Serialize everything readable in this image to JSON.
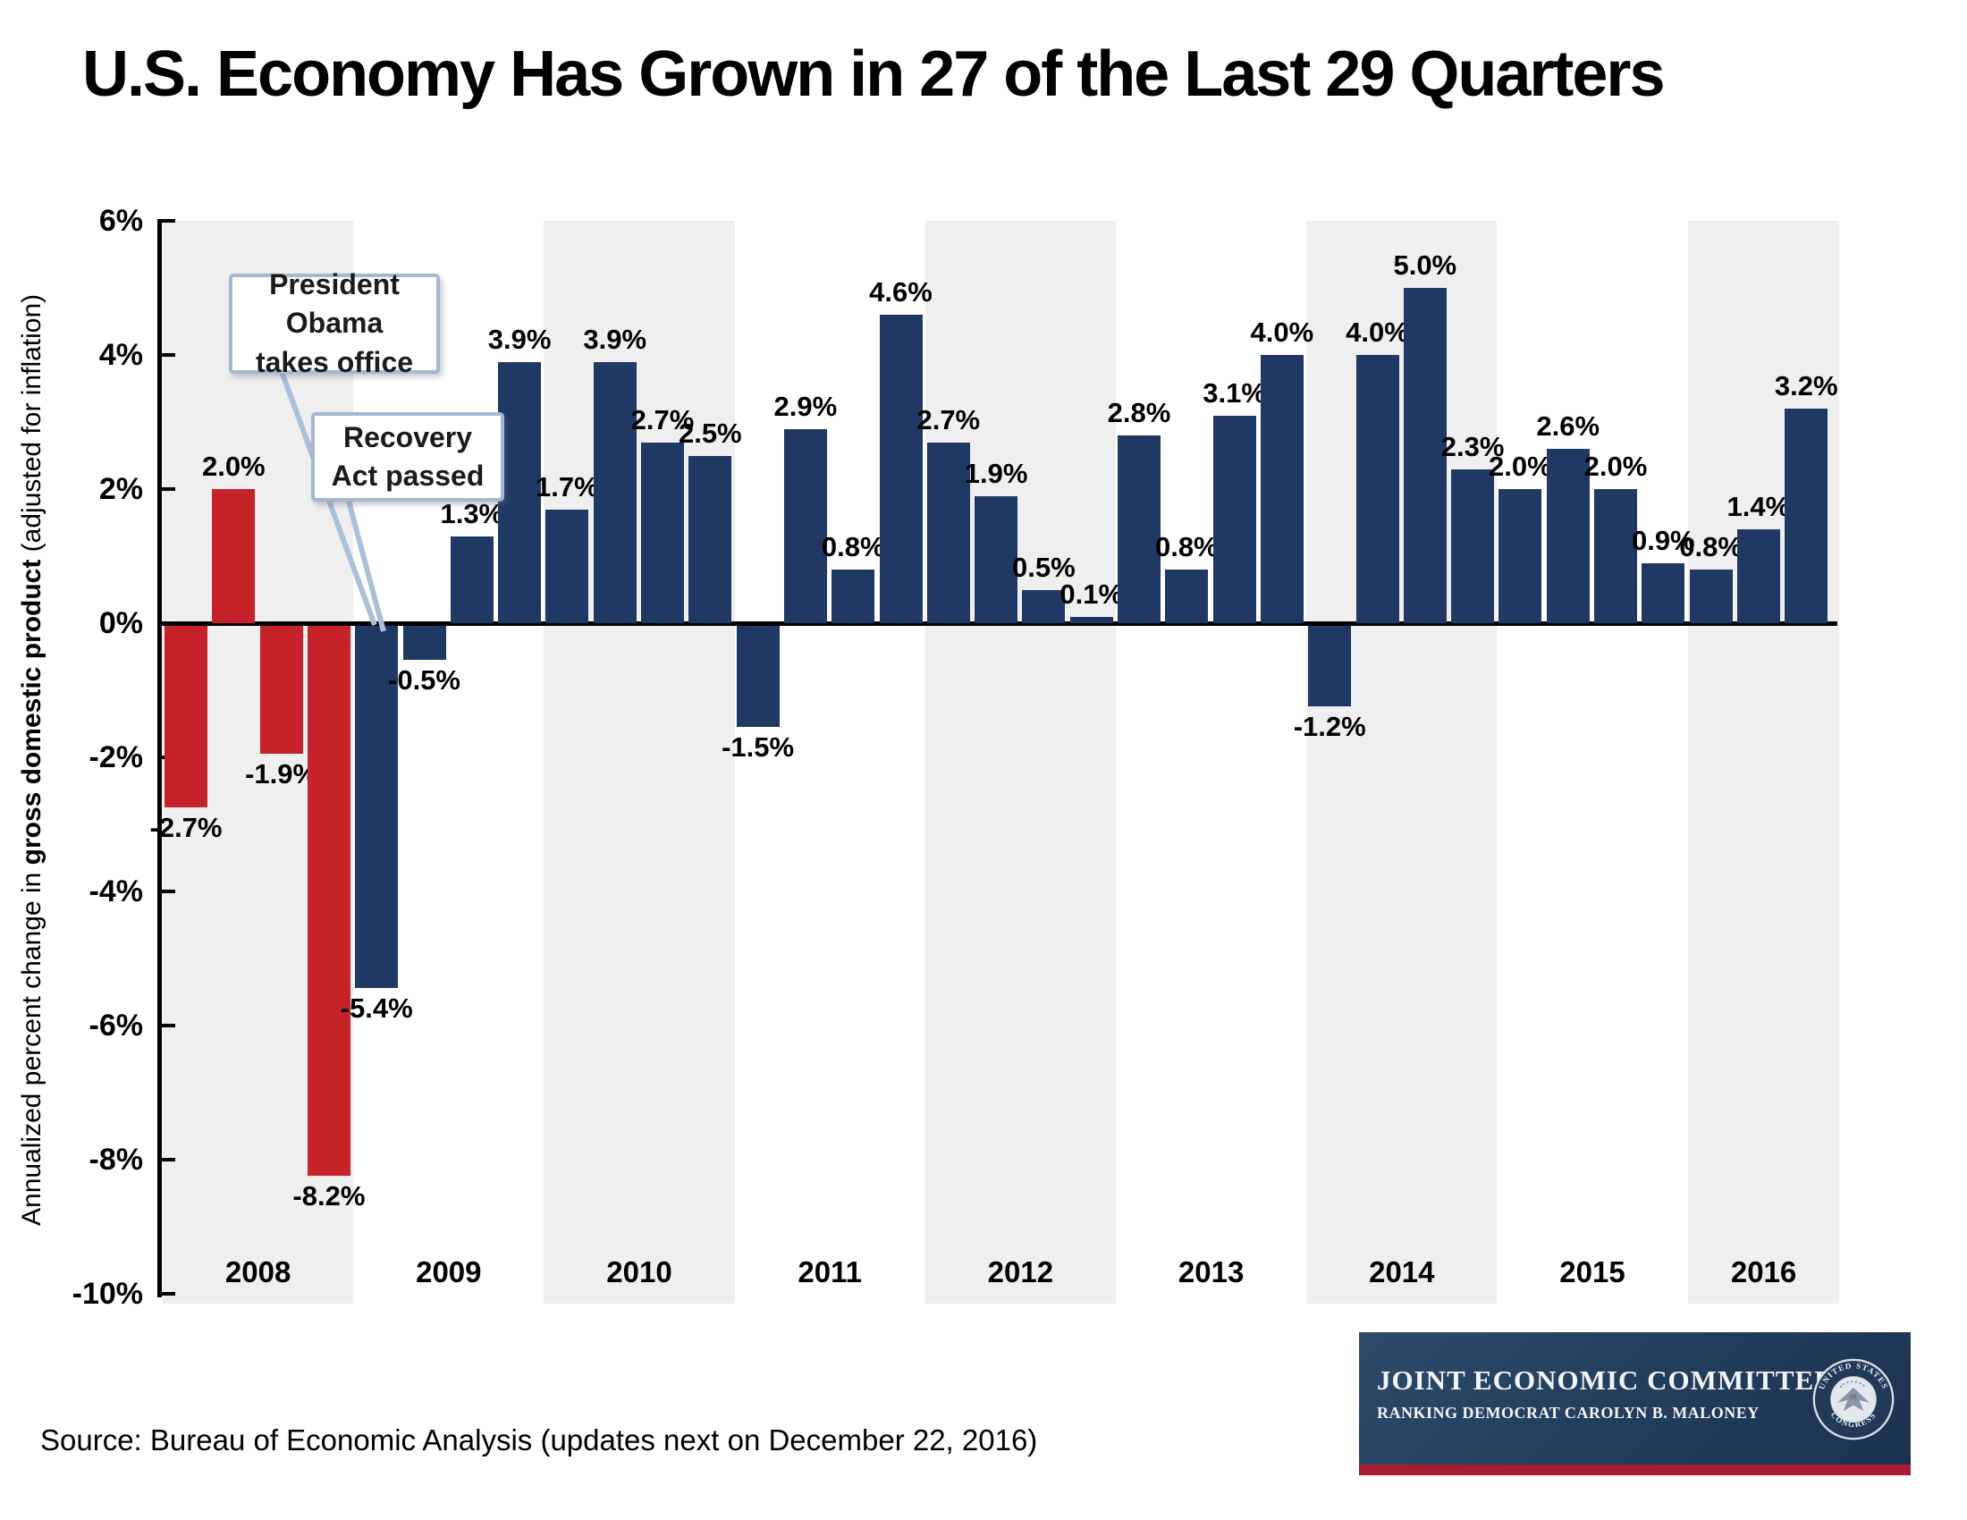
{
  "page_title": "U.S. Economy Has Grown in 27 of the Last 29 Quarters",
  "source_note": "Source: Bureau of Economic Analysis (updates next on December 22, 2016)",
  "annotations": {
    "obama": {
      "line1": "President Obama",
      "line2": "takes office"
    },
    "recovery": {
      "line1": "Recovery",
      "line2": "Act passed"
    }
  },
  "y_axis": {
    "title_prefix": "Annualized percent change in ",
    "title_bold": "gross domestic product",
    "title_suffix": " (adjusted for inflation)",
    "tick_labels": [
      "6%",
      "4%",
      "2%",
      "0%",
      "-2%",
      "-4%",
      "-6%",
      "-8%",
      "-10%"
    ],
    "tick_values": [
      6,
      4,
      2,
      0,
      -2,
      -4,
      -6,
      -8,
      -10
    ]
  },
  "colors": {
    "bar_negative_period": "#C5222A",
    "bar_recovery_period": "#1F3864",
    "year_band_gray": "#EFEFEF",
    "callout_border": "#A6B8D0",
    "leader_line": "#AABFD8",
    "banner_navy": "#1B3150",
    "banner_red_stripe": "#A81D33"
  },
  "chart_data": {
    "type": "bar",
    "title": "U.S. Economy Has Grown in 27 of the Last 29 Quarters",
    "xlabel": "",
    "ylabel": "Annualized percent change in gross domestic product (adjusted for inflation)",
    "unit": "percent",
    "ylim": [
      -10,
      6
    ],
    "grid": false,
    "legend": "none",
    "years": [
      {
        "year": "2008",
        "shaded": true,
        "bar_color": "#C5222A",
        "quarters": [
          {
            "label": "-2.7%",
            "value": -2.7
          },
          {
            "label": "2.0%",
            "value": 2.0
          },
          {
            "label": "-1.9%",
            "value": -1.9
          },
          {
            "label": "-8.2%",
            "value": -8.2
          }
        ]
      },
      {
        "year": "2009",
        "shaded": false,
        "bar_color": "#1F3864",
        "quarters": [
          {
            "label": "-5.4%",
            "value": -5.4
          },
          {
            "label": "-0.5%",
            "value": -0.5
          },
          {
            "label": "1.3%",
            "value": 1.3
          },
          {
            "label": "3.9%",
            "value": 3.9
          }
        ]
      },
      {
        "year": "2010",
        "shaded": true,
        "bar_color": "#1F3864",
        "quarters": [
          {
            "label": "1.7%",
            "value": 1.7
          },
          {
            "label": "3.9%",
            "value": 3.9
          },
          {
            "label": "2.7%",
            "value": 2.7
          },
          {
            "label": "2.5%",
            "value": 2.5
          }
        ]
      },
      {
        "year": "2011",
        "shaded": false,
        "bar_color": "#1F3864",
        "quarters": [
          {
            "label": "-1.5%",
            "value": -1.5
          },
          {
            "label": "2.9%",
            "value": 2.9
          },
          {
            "label": "0.8%",
            "value": 0.8
          },
          {
            "label": "4.6%",
            "value": 4.6
          }
        ]
      },
      {
        "year": "2012",
        "shaded": true,
        "bar_color": "#1F3864",
        "quarters": [
          {
            "label": "2.7%",
            "value": 2.7
          },
          {
            "label": "1.9%",
            "value": 1.9
          },
          {
            "label": "0.5%",
            "value": 0.5
          },
          {
            "label": "0.1%",
            "value": 0.1
          }
        ]
      },
      {
        "year": "2013",
        "shaded": false,
        "bar_color": "#1F3864",
        "quarters": [
          {
            "label": "2.8%",
            "value": 2.8
          },
          {
            "label": "0.8%",
            "value": 0.8
          },
          {
            "label": "3.1%",
            "value": 3.1
          },
          {
            "label": "4.0%",
            "value": 4.0
          }
        ]
      },
      {
        "year": "2014",
        "shaded": true,
        "bar_color": "#1F3864",
        "quarters": [
          {
            "label": "-1.2%",
            "value": -1.2
          },
          {
            "label": "4.0%",
            "value": 4.0
          },
          {
            "label": "5.0%",
            "value": 5.0
          },
          {
            "label": "2.3%",
            "value": 2.3
          }
        ]
      },
      {
        "year": "2015",
        "shaded": false,
        "bar_color": "#1F3864",
        "quarters": [
          {
            "label": "2.0%",
            "value": 2.0
          },
          {
            "label": "2.6%",
            "value": 2.6
          },
          {
            "label": "2.0%",
            "value": 2.0
          },
          {
            "label": "0.9%",
            "value": 0.9
          }
        ]
      },
      {
        "year": "2016",
        "shaded": true,
        "bar_color": "#1F3864",
        "quarters": [
          {
            "label": "0.8%",
            "value": 0.8
          },
          {
            "label": "1.4%",
            "value": 1.4
          },
          {
            "label": "3.2%",
            "value": 3.2
          }
        ]
      }
    ]
  },
  "logo": {
    "title": "JOINT ECONOMIC COMMITTEE",
    "subtitle": "RANKING DEMOCRAT CAROLYN B. MALONEY",
    "seal_top": "UNITED STATES",
    "seal_bottom": "CONGRESS"
  }
}
